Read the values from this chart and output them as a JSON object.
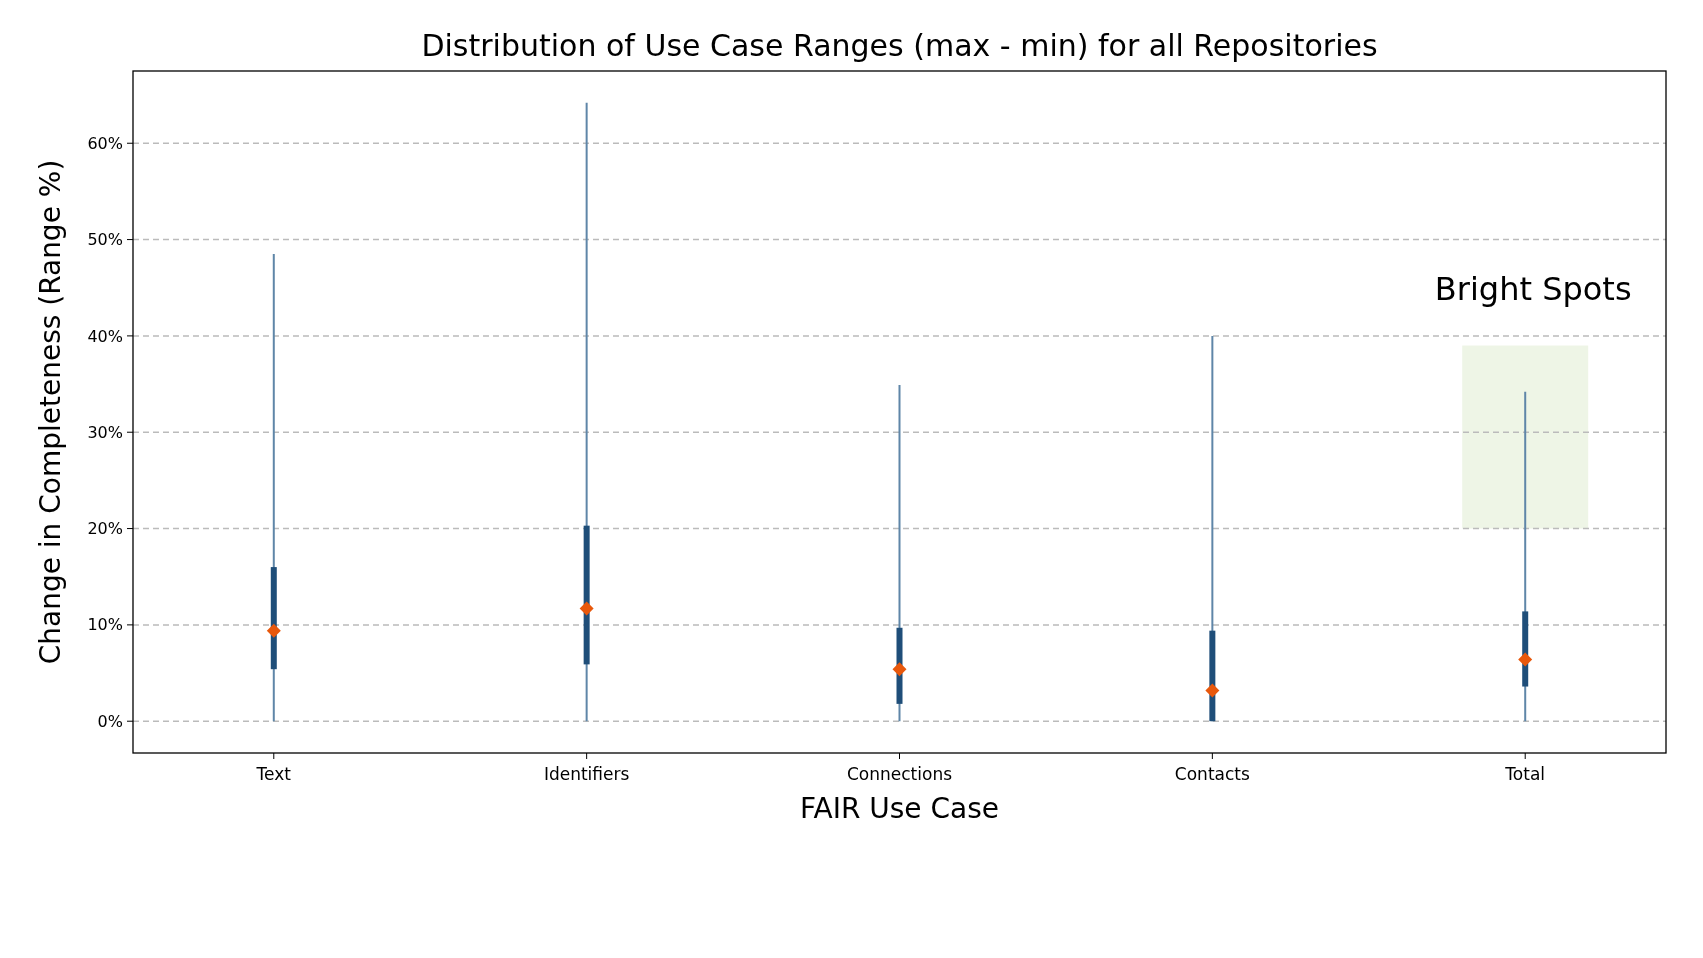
{
  "chart_data": {
    "type": "box",
    "title": "Distribution of Use Case Ranges (max - min) for all Repositories",
    "xlabel": "FAIR Use Case",
    "ylabel": "Change in Completeness (Range %)",
    "categories": [
      "Text",
      "Identifiers",
      "Connections",
      "Contacts",
      "Total"
    ],
    "boxes": [
      {
        "low": 0,
        "q1": 5.4,
        "median": 9.4,
        "q3": 16.0,
        "high": 48.5
      },
      {
        "low": 0,
        "q1": 5.9,
        "median": 11.7,
        "q3": 20.3,
        "high": 64.2
      },
      {
        "low": 0,
        "q1": 1.8,
        "median": 5.4,
        "q3": 9.7,
        "high": 34.9
      },
      {
        "low": 0,
        "q1": 0,
        "median": 3.2,
        "q3": 9.4,
        "high": 40.0
      },
      {
        "low": 0,
        "q1": 3.6,
        "median": 6.4,
        "q3": 11.4,
        "high": 34.2
      }
    ],
    "color": "#1f4e79",
    "ylim": [
      -3.3,
      67.5
    ],
    "yticks": [
      {
        "value": 0,
        "label": "0%"
      },
      {
        "value": 10,
        "label": "10%"
      },
      {
        "value": 20,
        "label": "20%"
      },
      {
        "value": 30,
        "label": "30%"
      },
      {
        "value": 40,
        "label": "40%"
      },
      {
        "value": 50,
        "label": "50%"
      },
      {
        "value": 60,
        "label": "60%"
      }
    ],
    "grid": "y",
    "bands": [
      {
        "axis": "y",
        "from": 20,
        "to": 39,
        "label": "Bright Spots",
        "color": "#eef5e6"
      }
    ]
  }
}
